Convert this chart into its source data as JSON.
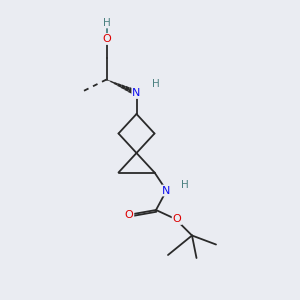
{
  "background_color": "#eaecf2",
  "bond_color": "#2a2a2a",
  "atom_colors": {
    "C": "#2a2a2a",
    "H": "#4a8080",
    "N": "#1010ee",
    "O": "#dd0000"
  },
  "figsize": [
    3.0,
    3.0
  ],
  "dpi": 100,
  "bond_lw": 1.3,
  "font_size": 7.5
}
